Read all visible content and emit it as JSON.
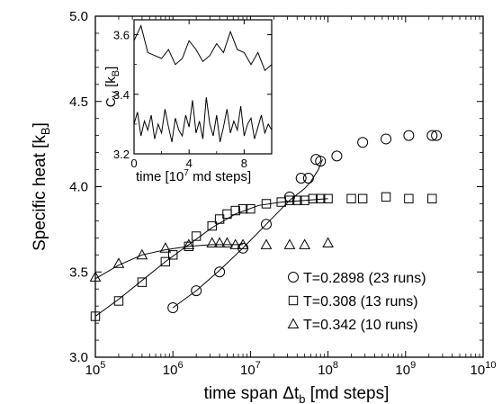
{
  "chart_data": [
    {
      "type": "scatter",
      "xlabel": "time span Δt",
      "xlabel_sub": "b",
      "xlabel_unit": "[md steps]",
      "ylabel": "Specific heat [k",
      "ylabel_sub": "B",
      "ylabel_end": "]",
      "xscale": "log",
      "xlim": [
        100000,
        10000000000
      ],
      "ylim": [
        3.0,
        5.0
      ],
      "x_ticks": [
        {
          "value": 100000,
          "base": "10",
          "exp": "5"
        },
        {
          "value": 1000000,
          "base": "10",
          "exp": "6"
        },
        {
          "value": 10000000,
          "base": "10",
          "exp": "7"
        },
        {
          "value": 100000000,
          "base": "10",
          "exp": "8"
        },
        {
          "value": 1000000000,
          "base": "10",
          "exp": "9"
        },
        {
          "value": 10000000000,
          "base": "10",
          "exp": "10"
        }
      ],
      "y_ticks": [
        "3.0",
        "3.5",
        "4.0",
        "4.5",
        "5.0"
      ],
      "grid": false,
      "legend_position": "bottom-right",
      "series": [
        {
          "name": "T=0.2898 (23 runs)",
          "marker": "circle",
          "points": [
            [
              1000000,
              3.29
            ],
            [
              2000000,
              3.39
            ],
            [
              4000000,
              3.5
            ],
            [
              8000000,
              3.64
            ],
            [
              16000000,
              3.78
            ],
            [
              32000000,
              3.94
            ],
            [
              45000000,
              4.05
            ],
            [
              56000000,
              4.05
            ],
            [
              70000000,
              4.16
            ],
            [
              80000000,
              4.15
            ],
            [
              130000000,
              4.18
            ],
            [
              280000000,
              4.26
            ],
            [
              560000000,
              4.28
            ],
            [
              1100000000,
              4.3
            ],
            [
              2200000000,
              4.3
            ],
            [
              2500000000,
              4.3
            ]
          ],
          "fit": [
            [
              1000000,
              3.29
            ],
            [
              2000000,
              3.39
            ],
            [
              4000000,
              3.51
            ],
            [
              8000000,
              3.64
            ],
            [
              16000000,
              3.78
            ],
            [
              32000000,
              3.92
            ],
            [
              50000000,
              3.99
            ],
            [
              60000000,
              4.03
            ],
            [
              75000000,
              4.1
            ],
            [
              85000000,
              4.16
            ]
          ]
        },
        {
          "name": "T=0.308 (13 runs)",
          "marker": "square",
          "points": [
            [
              100000,
              3.24
            ],
            [
              200000,
              3.33
            ],
            [
              400000,
              3.44
            ],
            [
              800000,
              3.56
            ],
            [
              1000000,
              3.6
            ],
            [
              1600000,
              3.65
            ],
            [
              2000000,
              3.71
            ],
            [
              3200000,
              3.77
            ],
            [
              4000000,
              3.81
            ],
            [
              5000000,
              3.84
            ],
            [
              6400000,
              3.86
            ],
            [
              8000000,
              3.87
            ],
            [
              10000000,
              3.87
            ],
            [
              16000000,
              3.9
            ],
            [
              25000000,
              3.91
            ],
            [
              32000000,
              3.92
            ],
            [
              40000000,
              3.92
            ],
            [
              50000000,
              3.92
            ],
            [
              64000000,
              3.93
            ],
            [
              80000000,
              3.93
            ],
            [
              100000000,
              3.93
            ],
            [
              200000000,
              3.93
            ],
            [
              280000000,
              3.93
            ],
            [
              560000000,
              3.94
            ],
            [
              1100000000,
              3.93
            ],
            [
              2200000000,
              3.93
            ]
          ],
          "fit": [
            [
              100000,
              3.24
            ],
            [
              200000,
              3.34
            ],
            [
              400000,
              3.45
            ],
            [
              800000,
              3.56
            ],
            [
              1600000,
              3.66
            ],
            [
              3200000,
              3.76
            ],
            [
              6400000,
              3.84
            ],
            [
              12800000,
              3.89
            ],
            [
              25000000,
              3.91
            ],
            [
              50000000,
              3.92
            ],
            [
              100000000,
              3.93
            ]
          ]
        },
        {
          "name": "T=0.342 (10 runs)",
          "marker": "triangle",
          "points": [
            [
              100000,
              3.47
            ],
            [
              200000,
              3.55
            ],
            [
              400000,
              3.6
            ],
            [
              800000,
              3.64
            ],
            [
              1600000,
              3.66
            ],
            [
              3200000,
              3.67
            ],
            [
              4000000,
              3.67
            ],
            [
              5000000,
              3.67
            ],
            [
              6400000,
              3.66
            ],
            [
              8000000,
              3.66
            ],
            [
              16000000,
              3.66
            ],
            [
              32000000,
              3.66
            ],
            [
              50000000,
              3.66
            ],
            [
              100000000,
              3.67
            ]
          ],
          "fit": [
            [
              100000,
              3.46
            ],
            [
              200000,
              3.54
            ],
            [
              400000,
              3.6
            ],
            [
              800000,
              3.63
            ],
            [
              1600000,
              3.65
            ],
            [
              3200000,
              3.66
            ],
            [
              8000000,
              3.66
            ]
          ]
        }
      ]
    },
    {
      "type": "line",
      "ylabel": "C",
      "ylabel_sub": "V",
      "ylabel_unit": " [k",
      "ylabel_unit_sub": "B",
      "ylabel_end": "]",
      "xlabel": "time [10",
      "xlabel_sup": "7",
      "xlabel_end": " md steps]",
      "xlim": [
        0,
        10
      ],
      "ylim": [
        3.2,
        3.65
      ],
      "x_ticks": [
        "0",
        "4",
        "8"
      ],
      "y_ticks": [
        "3.2",
        "3.4",
        "3.6"
      ],
      "series": [
        {
          "x": [
            0,
            0.5,
            1,
            1.5,
            2,
            2.5,
            3,
            3.5,
            4,
            4.5,
            5,
            5.5,
            6,
            6.5,
            7,
            7.5,
            8,
            8.5,
            9,
            9.5,
            10
          ],
          "values": [
            3.58,
            3.63,
            3.54,
            3.53,
            3.52,
            3.55,
            3.5,
            3.52,
            3.58,
            3.55,
            3.51,
            3.53,
            3.57,
            3.54,
            3.61,
            3.55,
            3.54,
            3.5,
            3.54,
            3.48,
            3.5
          ]
        },
        {
          "x": [
            0,
            0.25,
            0.5,
            0.75,
            1,
            1.25,
            1.5,
            1.75,
            2,
            2.25,
            2.5,
            2.75,
            3,
            3.25,
            3.5,
            3.75,
            4,
            4.25,
            4.5,
            4.75,
            5,
            5.25,
            5.5,
            5.75,
            6,
            6.25,
            6.5,
            6.75,
            7,
            7.25,
            7.5,
            7.75,
            8,
            8.25,
            8.5,
            8.75,
            9,
            9.25,
            9.5,
            9.75,
            10
          ],
          "values": [
            3.3,
            3.34,
            3.26,
            3.31,
            3.28,
            3.33,
            3.25,
            3.3,
            3.27,
            3.35,
            3.29,
            3.24,
            3.32,
            3.28,
            3.26,
            3.33,
            3.29,
            3.38,
            3.27,
            3.31,
            3.25,
            3.39,
            3.3,
            3.26,
            3.33,
            3.24,
            3.29,
            3.35,
            3.27,
            3.31,
            3.28,
            3.36,
            3.26,
            3.3,
            3.32,
            3.25,
            3.29,
            3.33,
            3.27,
            3.3,
            3.28
          ]
        }
      ]
    }
  ]
}
